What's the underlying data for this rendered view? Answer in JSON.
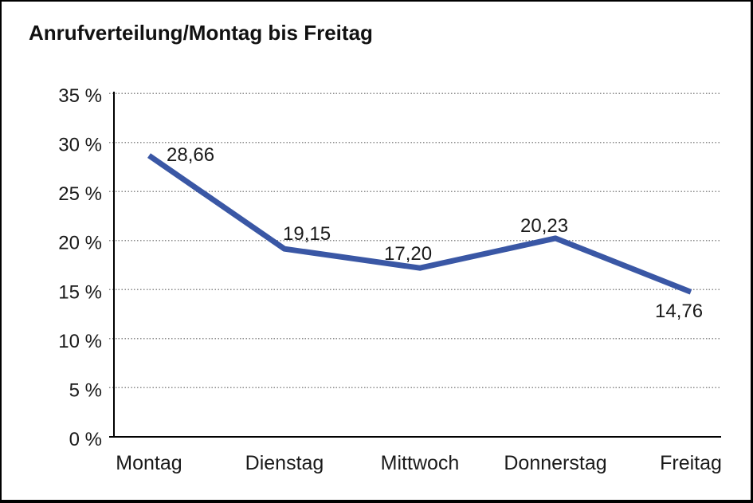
{
  "chart_data": {
    "type": "line",
    "title": "Anrufverteilung/Montag bis Freitag",
    "categories": [
      "Montag",
      "Dienstag",
      "Mittwoch",
      "Donnerstag",
      "Freitag"
    ],
    "values": [
      28.66,
      19.15,
      17.2,
      20.23,
      14.76
    ],
    "value_labels": [
      "28,66",
      "19,15",
      "17,20",
      "20,23",
      "14,76"
    ],
    "xlabel": "",
    "ylabel": "",
    "ylim": [
      0,
      35
    ],
    "y_ticks": [
      {
        "value": 35,
        "label": "35 %"
      },
      {
        "value": 30,
        "label": "30 %"
      },
      {
        "value": 25,
        "label": "25 %"
      },
      {
        "value": 20,
        "label": "20 %"
      },
      {
        "value": 15,
        "label": "15 %"
      },
      {
        "value": 10,
        "label": "10 %"
      },
      {
        "value": 5,
        "label": "5 %"
      },
      {
        "value": 0,
        "label": "0 %"
      }
    ],
    "grid": "horizontal-dotted",
    "legend": "none",
    "colors": {
      "line": "#3A57A5",
      "axis": "#000000",
      "gridline": "#8A8A8A",
      "text": "#1A1A1A",
      "background": "#FFFFFF",
      "frame_border": "#000000"
    }
  }
}
